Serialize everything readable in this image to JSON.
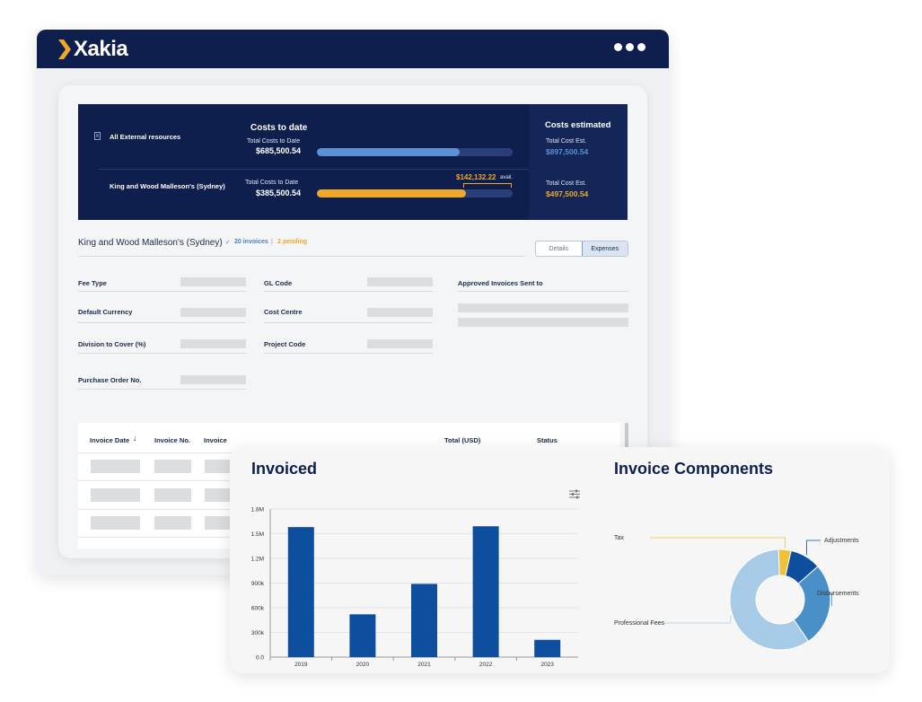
{
  "app": {
    "logo_text": "Xakia"
  },
  "summary": {
    "costs_to_date_title": "Costs to date",
    "costs_estimated_title": "Costs estimated",
    "rows": [
      {
        "name": "All External resources",
        "total_label": "Total Costs to Date",
        "total_value": "$685,500.54",
        "progress": 0.73,
        "est_label": "Total Cost Est.",
        "est_value": "$897,500.54",
        "color": "#5b8fd6"
      },
      {
        "name": "King and Wood Malleson's (Sydney)",
        "total_label": "Total Costs to Date",
        "total_value": "$385,500.54",
        "progress": 0.76,
        "avail_value": "$142,132.22",
        "avail_label": "avail.",
        "est_label": "Total Cost Est.",
        "est_value": "$497,500.54",
        "color": "#f0a82a"
      }
    ]
  },
  "detail": {
    "firm_name": "King and Wood Malleson's (Sydney)",
    "invoices_badge": "20 invoices",
    "separator": "|",
    "pending_badge": "2 pending",
    "tabs": [
      {
        "label": "Details",
        "active": false
      },
      {
        "label": "Expenses",
        "active": true
      }
    ],
    "fields": {
      "fee_type": "Fee Type",
      "default_currency": "Default Currency",
      "division_to_cover": "Division to Cover (%)",
      "purchase_order": "Purchase Order No.",
      "gl_code": "GL Code",
      "cost_centre": "Cost Centre",
      "project_code": "Project Code",
      "approved_invoices": "Approved Invoices Sent to"
    }
  },
  "invoice_table": {
    "headers": {
      "date": "Invoice Date",
      "number": "Invoice No.",
      "invoice": "Invoice",
      "total": "Total (USD)",
      "status": "Status"
    }
  },
  "invoiced_chart": {
    "title": "Invoiced",
    "chart_data": {
      "type": "bar",
      "categories": [
        "2019",
        "2020",
        "2021",
        "2022",
        "2023"
      ],
      "values": [
        1580000,
        520000,
        890000,
        1590000,
        210000
      ],
      "ylim": [
        0,
        1800000
      ],
      "yticks": [
        "0.0",
        "300k",
        "600k",
        "900k",
        "1.2M",
        "1.5M",
        "1.8M"
      ],
      "color": "#0d4f9e"
    }
  },
  "components_chart": {
    "title": "Invoice Components",
    "chart_data": {
      "type": "pie",
      "labels": [
        "Tax",
        "Adjustments",
        "Disbursements",
        "Professional Fees"
      ],
      "values": [
        4,
        10,
        27,
        59
      ],
      "colors": [
        "#f2c13a",
        "#0d4f9e",
        "#4a90c8",
        "#a7cbe6"
      ]
    }
  }
}
